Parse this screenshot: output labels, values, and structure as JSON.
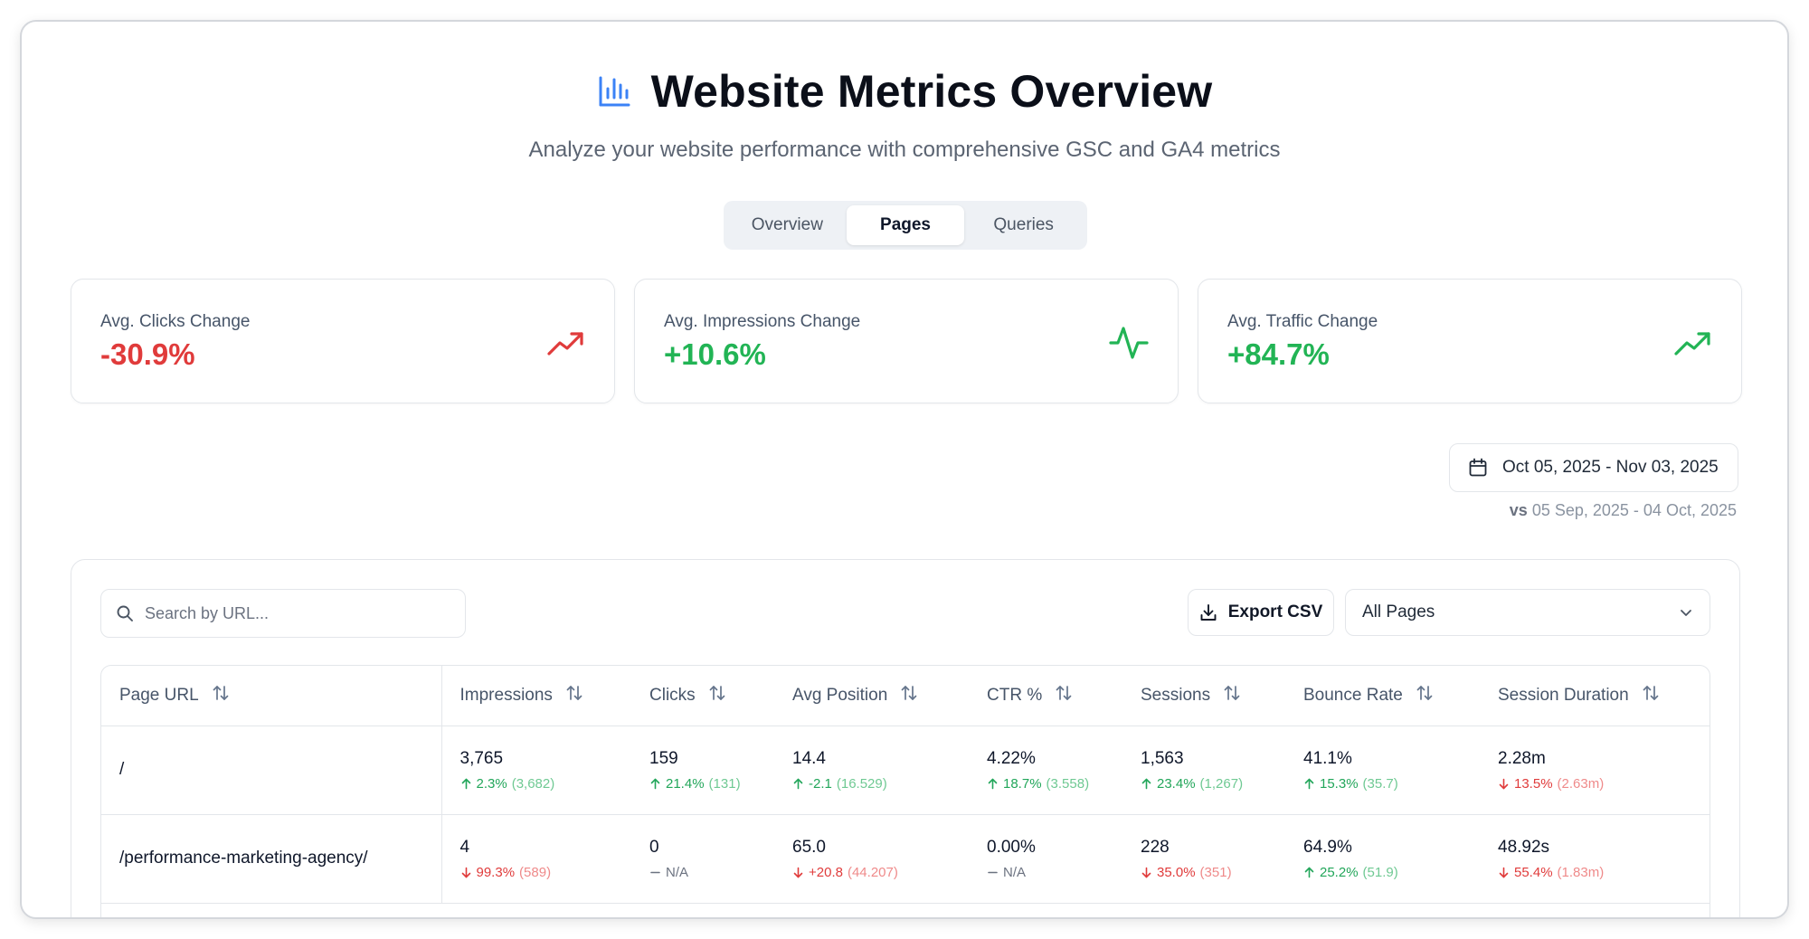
{
  "header": {
    "title": "Website Metrics Overview",
    "subtitle": "Analyze your website performance with comprehensive GSC and GA4 metrics",
    "icon": "bar-chart-icon",
    "accent": "#3b82f6"
  },
  "tabs": [
    {
      "label": "Overview",
      "active": false
    },
    {
      "label": "Pages",
      "active": true
    },
    {
      "label": "Queries",
      "active": false
    }
  ],
  "cards": [
    {
      "label": "Avg. Clicks Change",
      "value": "-30.9%",
      "trend": "negative",
      "icon": "trending-up-icon",
      "color": "#e03b3b"
    },
    {
      "label": "Avg. Impressions Change",
      "value": "+10.6%",
      "trend": "positive",
      "icon": "activity-icon",
      "color": "#22b455"
    },
    {
      "label": "Avg. Traffic Change",
      "value": "+84.7%",
      "trend": "positive",
      "icon": "trending-up-icon",
      "color": "#22b455"
    }
  ],
  "date_range": {
    "current": "Oct 05, 2025 - Nov 03, 2025",
    "vs_label": "vs",
    "previous": "05 Sep, 2025 - 04 Oct, 2025"
  },
  "toolbar": {
    "search_placeholder": "Search by URL...",
    "export_label": "Export CSV",
    "filter_value": "All Pages"
  },
  "table": {
    "columns": [
      "Page URL",
      "Impressions",
      "Clicks",
      "Avg Position",
      "CTR %",
      "Sessions",
      "Bounce Rate",
      "Session Duration"
    ],
    "rows": [
      {
        "url": "/",
        "cells": [
          {
            "value": "3,765",
            "dir": "up",
            "pct": "2.3%",
            "prev": "(3,682)"
          },
          {
            "value": "159",
            "dir": "up",
            "pct": "21.4%",
            "prev": "(131)"
          },
          {
            "value": "14.4",
            "dir": "up",
            "pct": "-2.1",
            "prev": "(16.529)"
          },
          {
            "value": "4.22%",
            "dir": "up",
            "pct": "18.7%",
            "prev": "(3.558)"
          },
          {
            "value": "1,563",
            "dir": "up",
            "pct": "23.4%",
            "prev": "(1,267)"
          },
          {
            "value": "41.1%",
            "dir": "up",
            "pct": "15.3%",
            "prev": "(35.7)"
          },
          {
            "value": "2.28m",
            "dir": "down",
            "pct": "13.5%",
            "prev": "(2.63m)"
          }
        ]
      },
      {
        "url": "/performance-marketing-agency/",
        "cells": [
          {
            "value": "4",
            "dir": "down",
            "pct": "99.3%",
            "prev": "(589)"
          },
          {
            "value": "0",
            "dir": "na",
            "pct": "N/A",
            "prev": ""
          },
          {
            "value": "65.0",
            "dir": "down",
            "pct": "+20.8",
            "prev": "(44.207)"
          },
          {
            "value": "0.00%",
            "dir": "na",
            "pct": "N/A",
            "prev": ""
          },
          {
            "value": "228",
            "dir": "down",
            "pct": "35.0%",
            "prev": "(351)"
          },
          {
            "value": "64.9%",
            "dir": "up",
            "pct": "25.2%",
            "prev": "(51.9)"
          },
          {
            "value": "48.92s",
            "dir": "down",
            "pct": "55.4%",
            "prev": "(1.83m)"
          }
        ]
      }
    ]
  }
}
